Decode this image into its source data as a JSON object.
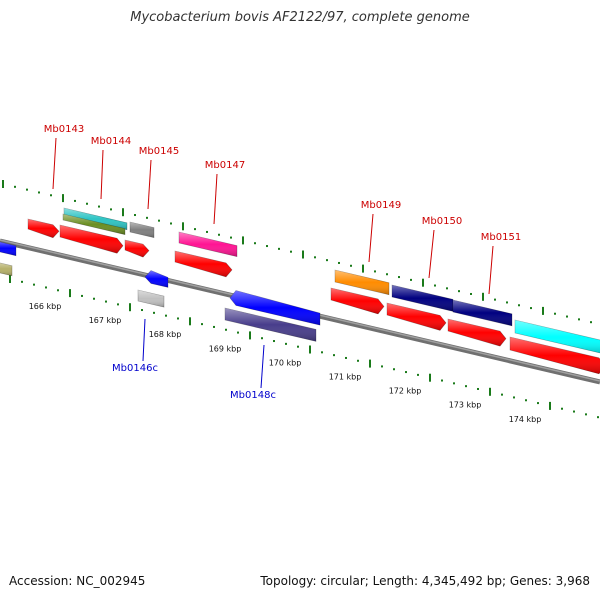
{
  "title": "Mycobacterium bovis AF2122/97, complete genome",
  "footer": {
    "accession": "Accession: NC_002945",
    "summary": "Topology: circular; Length: 4,345,492 bp; Genes: 3,968"
  },
  "colors": {
    "backbone": "#808080",
    "tick": "#1a7a1a",
    "forward_label": "#cc0000",
    "reverse_label": "#0000cc",
    "cds": "#ff0000"
  },
  "scale_labels": [
    "166 kbp",
    "167 kbp",
    "168 kbp",
    "169 kbp",
    "170 kbp",
    "171 kbp",
    "172 kbp",
    "173 kbp",
    "174 kbp"
  ],
  "gene_labels": {
    "forward": [
      "Mb0143",
      "Mb0144",
      "Mb0145",
      "Mb0147",
      "Mb0149",
      "Mb0150",
      "Mb0151"
    ],
    "reverse": [
      "Mb0146c",
      "Mb0148c"
    ]
  },
  "features": [
    {
      "color": "#0000ff",
      "strand": "-",
      "kind": "gene"
    },
    {
      "color": "#b5b06a",
      "strand": "-",
      "kind": "gene"
    },
    {
      "color": "#ff0000",
      "strand": "+",
      "kind": "CDS"
    },
    {
      "color": "#2ec4c4",
      "strand": "+",
      "kind": "gene"
    },
    {
      "color": "#6b8e23",
      "strand": "+",
      "kind": "gene"
    },
    {
      "color": "#ff0000",
      "strand": "+",
      "kind": "CDS"
    },
    {
      "color": "#808080",
      "strand": "+",
      "kind": "gene"
    },
    {
      "color": "#ff0000",
      "strand": "+",
      "kind": "CDS"
    },
    {
      "color": "#0000ff",
      "strand": "-",
      "kind": "gene"
    },
    {
      "color": "#c0c0c0",
      "strand": "-",
      "kind": "gene"
    },
    {
      "color": "#ff1493",
      "strand": "+",
      "kind": "gene"
    },
    {
      "color": "#ff0000",
      "strand": "+",
      "kind": "CDS"
    },
    {
      "color": "#0000ff",
      "strand": "-",
      "kind": "gene"
    },
    {
      "color": "#483d8b",
      "strand": "-",
      "kind": "gene"
    },
    {
      "color": "#ff8c00",
      "strand": "+",
      "kind": "gene"
    },
    {
      "color": "#ff0000",
      "strand": "+",
      "kind": "CDS"
    },
    {
      "color": "#000080",
      "strand": "+",
      "kind": "gene"
    },
    {
      "color": "#ff0000",
      "strand": "+",
      "kind": "CDS"
    },
    {
      "color": "#000080",
      "strand": "+",
      "kind": "gene"
    },
    {
      "color": "#ff0000",
      "strand": "+",
      "kind": "CDS"
    },
    {
      "color": "#00ffff",
      "strand": "+",
      "kind": "gene"
    },
    {
      "color": "#ff0000",
      "strand": "+",
      "kind": "CDS"
    }
  ]
}
